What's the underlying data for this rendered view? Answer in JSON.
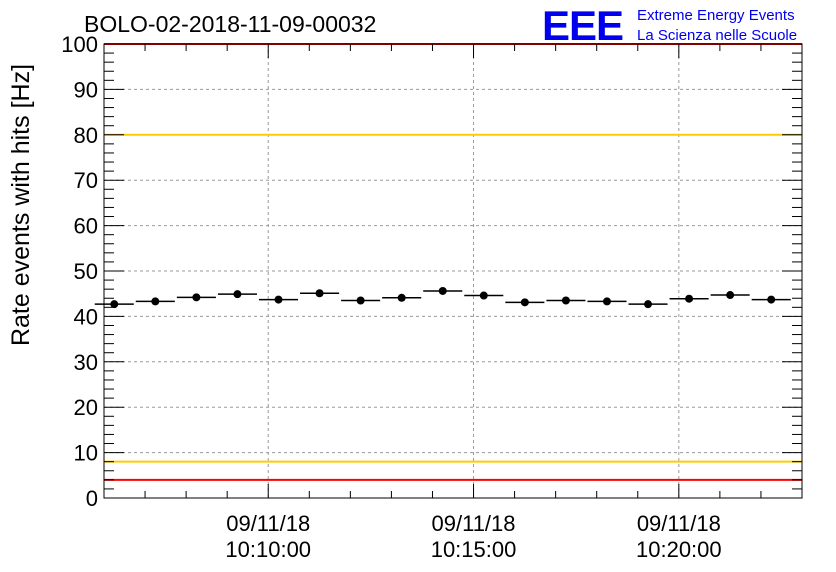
{
  "header": {
    "title": "BOLO-02-2018-11-09-00032",
    "logo": {
      "mark": "EEE",
      "line1": "Extreme Energy Events",
      "line2": "La Scienza nelle Scuole",
      "color": "#0000ee"
    }
  },
  "chart_data": {
    "type": "scatter",
    "title": "BOLO-02-2018-11-09-00032",
    "xlabel": "",
    "ylabel": "Rate events with hits [Hz]",
    "ylim": [
      0,
      100
    ],
    "yticks": [
      0,
      10,
      20,
      30,
      40,
      50,
      60,
      70,
      80,
      90,
      100
    ],
    "xticks": [
      {
        "date": "09/11/18",
        "time": "10:10:00"
      },
      {
        "date": "09/11/18",
        "time": "10:15:00"
      },
      {
        "date": "09/11/18",
        "time": "10:20:00"
      }
    ],
    "xlim": [
      "10:06:00",
      "10:23:00"
    ],
    "grid": true,
    "marker_color": "#000000",
    "reference_lines": [
      {
        "y": 4,
        "color": "#ff0000"
      },
      {
        "y": 8,
        "color": "#ffcc00"
      },
      {
        "y": 80,
        "color": "#ffcc00"
      },
      {
        "y": 100,
        "color": "#ff0000"
      }
    ],
    "series": [
      {
        "x": [
          "10:06:15",
          "10:07:15",
          "10:08:15",
          "10:09:15",
          "10:10:15",
          "10:11:15",
          "10:12:15",
          "10:13:15",
          "10:14:15",
          "10:15:15",
          "10:16:15",
          "10:17:15",
          "10:18:15",
          "10:19:15",
          "10:20:15",
          "10:21:15",
          "10:22:15"
        ],
        "y": [
          42.7,
          43.3,
          44.2,
          44.9,
          43.7,
          45.1,
          43.5,
          44.1,
          45.6,
          44.6,
          43.1,
          43.5,
          43.3,
          42.7,
          43.9,
          44.7,
          43.7
        ],
        "bin_width_seconds": 60
      }
    ]
  }
}
